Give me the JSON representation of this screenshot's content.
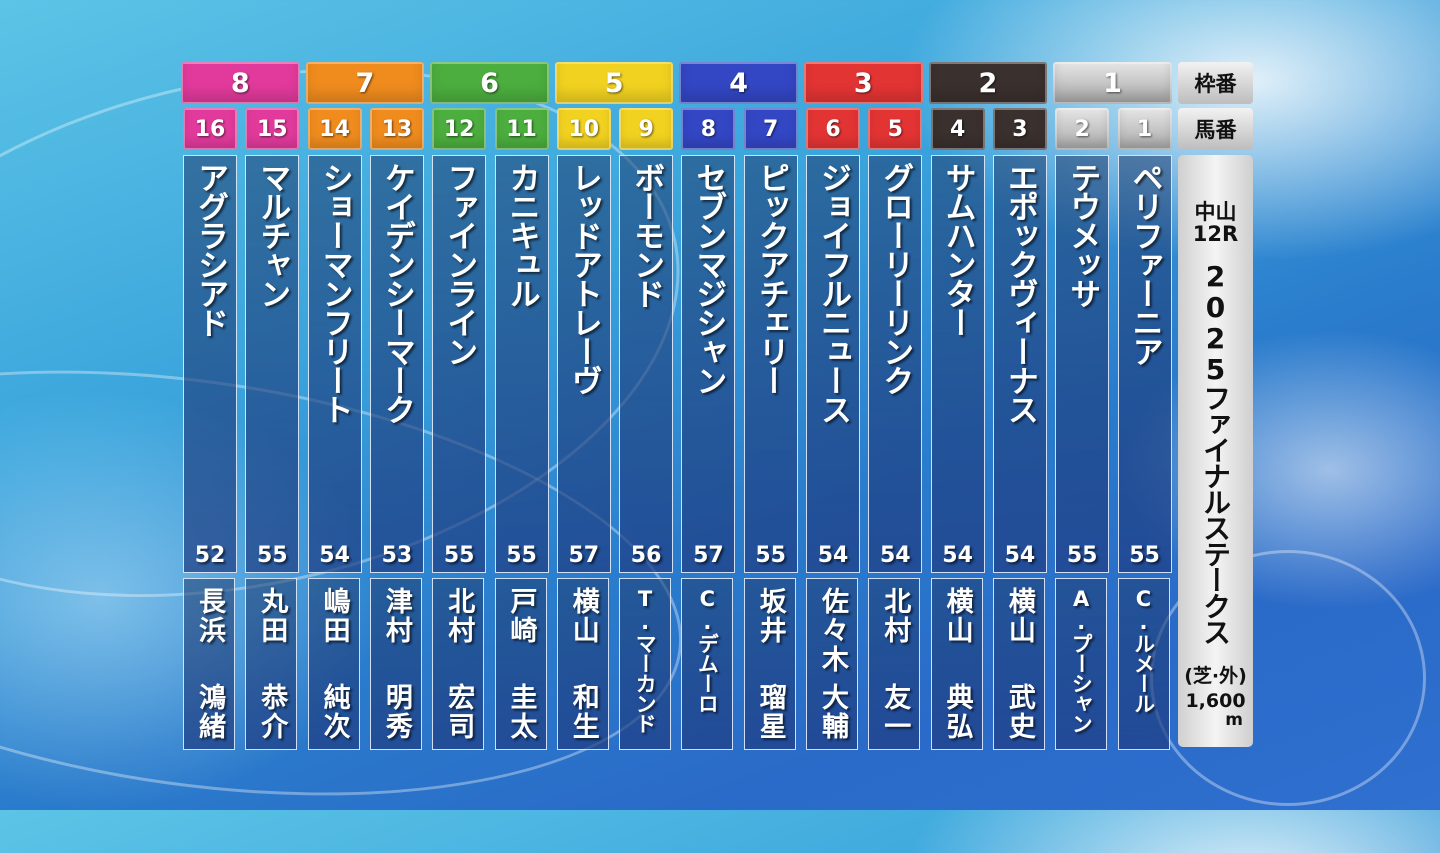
{
  "labels": {
    "frame": "枠番",
    "horse_number": "馬番"
  },
  "race": {
    "venue": "中山",
    "race_number": "12R",
    "name": "2025ファイナルステークス",
    "surface": "(芝·外)",
    "distance": "1,600",
    "distance_unit": "m"
  },
  "frame_colors": {
    "8": "#e23a9c",
    "7": "#f08c1e",
    "6": "#4cae3e",
    "5": "#f2d220",
    "4": "#3346c4",
    "3": "#e33434",
    "2": "#3a302e",
    "1": "#bdbdbd"
  },
  "frames": [
    {
      "frame": "8"
    },
    {
      "frame": "7"
    },
    {
      "frame": "6"
    },
    {
      "frame": "5"
    },
    {
      "frame": "4"
    },
    {
      "frame": "3"
    },
    {
      "frame": "2"
    },
    {
      "frame": "1"
    }
  ],
  "horses": [
    {
      "number": "16",
      "frame": "8",
      "name": "アグラシアド",
      "weight": "52",
      "jockey_family": "長浜",
      "jockey_given": "鴻緒"
    },
    {
      "number": "15",
      "frame": "8",
      "name": "マルチャン",
      "weight": "55",
      "jockey_family": "丸田",
      "jockey_given": "恭介"
    },
    {
      "number": "14",
      "frame": "7",
      "name": "ショーマンフリート",
      "weight": "54",
      "jockey_family": "嶋田",
      "jockey_given": "純次"
    },
    {
      "number": "13",
      "frame": "7",
      "name": "ケイデンシーマーク",
      "weight": "53",
      "jockey_family": "津村",
      "jockey_given": "明秀"
    },
    {
      "number": "12",
      "frame": "6",
      "name": "ファインライン",
      "weight": "55",
      "jockey_family": "北村",
      "jockey_given": "宏司"
    },
    {
      "number": "11",
      "frame": "6",
      "name": "カニキュル",
      "weight": "55",
      "jockey_family": "戸崎",
      "jockey_given": "圭太"
    },
    {
      "number": "10",
      "frame": "5",
      "name": "レッドアトレーヴ",
      "weight": "57",
      "jockey_family": "横山",
      "jockey_given": "和生"
    },
    {
      "number": "9",
      "frame": "5",
      "name": "ボーモンド",
      "weight": "56",
      "jockey_family": "T.マーカンド",
      "jockey_given": ""
    },
    {
      "number": "8",
      "frame": "4",
      "name": "セブンマジシャン",
      "weight": "57",
      "jockey_family": "C.デムーロ",
      "jockey_given": ""
    },
    {
      "number": "7",
      "frame": "4",
      "name": "ピックアチェリー",
      "weight": "55",
      "jockey_family": "坂井",
      "jockey_given": "瑠星"
    },
    {
      "number": "6",
      "frame": "3",
      "name": "ジョイフルニュース",
      "weight": "54",
      "jockey_family": "佐々木",
      "jockey_given": "大輔"
    },
    {
      "number": "5",
      "frame": "3",
      "name": "グローリーリンク",
      "weight": "54",
      "jockey_family": "北村",
      "jockey_given": "友一"
    },
    {
      "number": "4",
      "frame": "2",
      "name": "サムハンター",
      "weight": "54",
      "jockey_family": "横山",
      "jockey_given": "典弘"
    },
    {
      "number": "3",
      "frame": "2",
      "name": "エポックヴィーナス",
      "weight": "54",
      "jockey_family": "横山",
      "jockey_given": "武史"
    },
    {
      "number": "2",
      "frame": "1",
      "name": "テウメッサ",
      "weight": "55",
      "jockey_family": "A.プーシャン",
      "jockey_given": ""
    },
    {
      "number": "1",
      "frame": "1",
      "name": "ペリファーニア",
      "weight": "55",
      "jockey_family": "C.ルメール",
      "jockey_given": ""
    }
  ]
}
